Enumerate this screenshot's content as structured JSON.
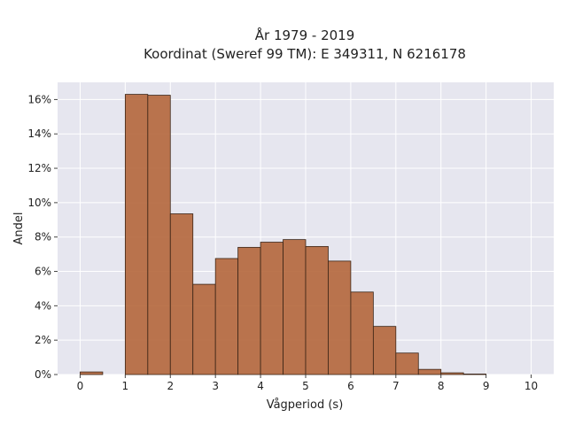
{
  "chart_data": {
    "type": "bar",
    "title": "År 1979 - 2019",
    "subtitle": "Koordinat (Sweref 99 TM): E 349311, N 6216178",
    "xlabel": "Vågperiod (s)",
    "ylabel": "Andel",
    "xlim": [
      -0.5,
      10.5
    ],
    "ylim": [
      0,
      17
    ],
    "x_ticks": [
      0,
      1,
      2,
      3,
      4,
      5,
      6,
      7,
      8,
      9,
      10
    ],
    "x_tick_labels": [
      "0",
      "1",
      "2",
      "3",
      "4",
      "5",
      "6",
      "7",
      "8",
      "9",
      "10"
    ],
    "y_ticks": [
      0,
      2,
      4,
      6,
      8,
      10,
      12,
      14,
      16
    ],
    "y_tick_labels": [
      "0%",
      "2%",
      "4%",
      "6%",
      "8%",
      "10%",
      "12%",
      "14%",
      "16%"
    ],
    "bin_width": 0.5,
    "bins": [
      {
        "start": 0.0,
        "value": 0.15
      },
      {
        "start": 0.5,
        "value": 0.0
      },
      {
        "start": 1.0,
        "value": 16.3
      },
      {
        "start": 1.5,
        "value": 16.25
      },
      {
        "start": 2.0,
        "value": 9.35
      },
      {
        "start": 2.5,
        "value": 5.25
      },
      {
        "start": 3.0,
        "value": 6.75
      },
      {
        "start": 3.5,
        "value": 7.4
      },
      {
        "start": 4.0,
        "value": 7.7
      },
      {
        "start": 4.5,
        "value": 7.85
      },
      {
        "start": 5.0,
        "value": 7.45
      },
      {
        "start": 5.5,
        "value": 6.6
      },
      {
        "start": 6.0,
        "value": 4.8
      },
      {
        "start": 6.5,
        "value": 2.8
      },
      {
        "start": 7.0,
        "value": 1.25
      },
      {
        "start": 7.5,
        "value": 0.3
      },
      {
        "start": 8.0,
        "value": 0.1
      },
      {
        "start": 8.5,
        "value": 0.03
      }
    ],
    "bar_color": "#B5693F",
    "bar_edge_color": "#3a2416",
    "plot_background": "#E6E6EF",
    "grid_color": "#ffffff",
    "grid": true
  }
}
